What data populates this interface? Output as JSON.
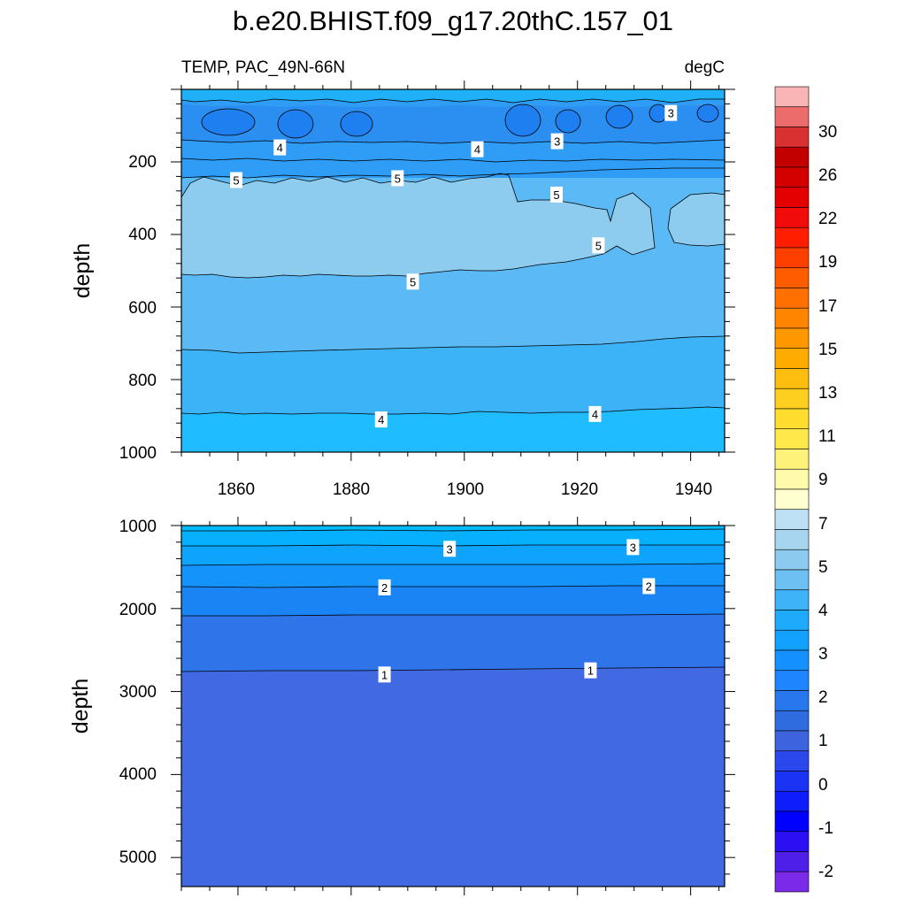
{
  "chart_data": {
    "type": "contour",
    "title": "b.e20.BHIST.f09_g17.20thC.157_01",
    "left_label": "TEMP, PAC_49N-66N",
    "right_label": "degC",
    "xlim": [
      1850,
      1946
    ],
    "x_ticks": [
      "1860",
      "1880",
      "1900",
      "1920",
      "1940"
    ],
    "upper_panel": {
      "ylabel": "depth",
      "ylim": [
        0,
        1000
      ],
      "y_ticks": [
        "200",
        "400",
        "600",
        "800",
        "1000"
      ],
      "contour_labels": [
        {
          "text": "3",
          "year": 1936.5,
          "depth": 65
        },
        {
          "text": "3",
          "year": 1916.4,
          "depth": 143
        },
        {
          "text": "4",
          "year": 1902.3,
          "depth": 165
        },
        {
          "text": "4",
          "year": 1867.4,
          "depth": 160
        },
        {
          "text": "5",
          "year": 1859.7,
          "depth": 250
        },
        {
          "text": "5",
          "year": 1888.2,
          "depth": 245
        },
        {
          "text": "5",
          "year": 1916.3,
          "depth": 290
        },
        {
          "text": "5",
          "year": 1923.7,
          "depth": 430
        },
        {
          "text": "5",
          "year": 1890.9,
          "depth": 530
        },
        {
          "text": "4",
          "year": 1885.3,
          "depth": 910
        },
        {
          "text": "4",
          "year": 1923.1,
          "depth": 895
        }
      ]
    },
    "lower_panel": {
      "ylabel": "depth",
      "ylim": [
        1000,
        5350
      ],
      "y_ticks": [
        "1000",
        "2000",
        "3000",
        "4000",
        "5000"
      ],
      "contour_labels": [
        {
          "text": "3",
          "year": 1897.4,
          "depth": 1280
        },
        {
          "text": "3",
          "year": 1929.8,
          "depth": 1260
        },
        {
          "text": "2",
          "year": 1885.9,
          "depth": 1745
        },
        {
          "text": "2",
          "year": 1932.6,
          "depth": 1730
        },
        {
          "text": "1",
          "year": 1885.9,
          "depth": 2795
        },
        {
          "text": "1",
          "year": 1922.3,
          "depth": 2745
        }
      ]
    },
    "colorbar": {
      "labels": [
        "30",
        "26",
        "22",
        "19",
        "17",
        "15",
        "13",
        "11",
        "9",
        "7",
        "5",
        "4",
        "3",
        "2",
        "1",
        "0",
        "-1",
        "-2"
      ],
      "colors": [
        "#f9b5b5",
        "#ec6c6c",
        "#d93131",
        "#c30000",
        "#d40000",
        "#e40000",
        "#f20b0b",
        "#ff1f00",
        "#ff3f00",
        "#ff5c00",
        "#ff7000",
        "#ff8400",
        "#ff9700",
        "#ffab00",
        "#ffbd10",
        "#ffcf20",
        "#ffde30",
        "#ffe84a",
        "#fff27a",
        "#fffbaa",
        "#ffffd0",
        "#bde0f4",
        "#a7d5f0",
        "#8ccbef",
        "#6cc0f2",
        "#3fb3f8",
        "#1eabfb",
        "#12a1ff",
        "#1592ff",
        "#1f85ff",
        "#2778ee",
        "#2f6ce0",
        "#3d63dd",
        "#2b48ec",
        "#1a33f5",
        "#0d1ef8",
        "#0000ff",
        "#2a10f2",
        "#4d1fe8",
        "#7a2ae8"
      ]
    }
  }
}
